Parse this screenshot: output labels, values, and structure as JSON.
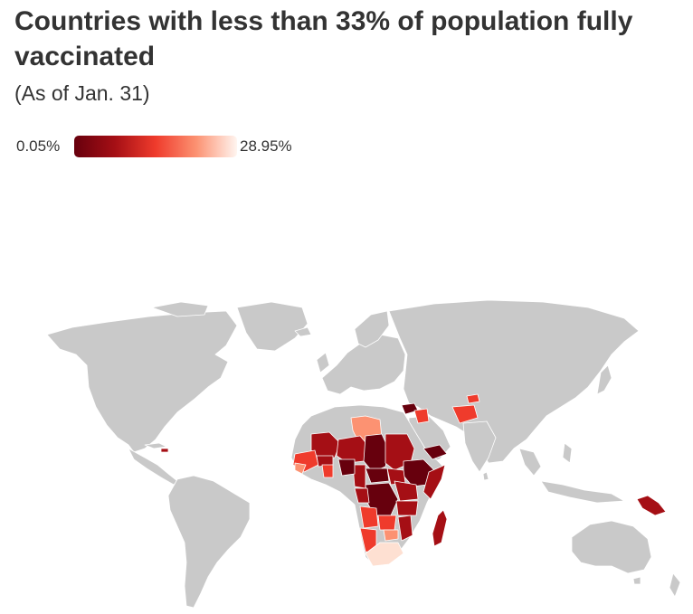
{
  "title": "Countries with less than 33% of population fully vaccinated",
  "subtitle": "(As of Jan. 31)",
  "legend": {
    "min_label": "0.05%",
    "max_label": "28.95%",
    "min_value": 0.05,
    "max_value": 28.95,
    "gradient": [
      "#67000d",
      "#a50f15",
      "#ef3b2c",
      "#fc9272",
      "#fff5f0"
    ]
  },
  "colors": {
    "no_data_land": "#c9c9c9",
    "border": "#ffffff",
    "background": "#ffffff",
    "text": "#333333"
  }
}
